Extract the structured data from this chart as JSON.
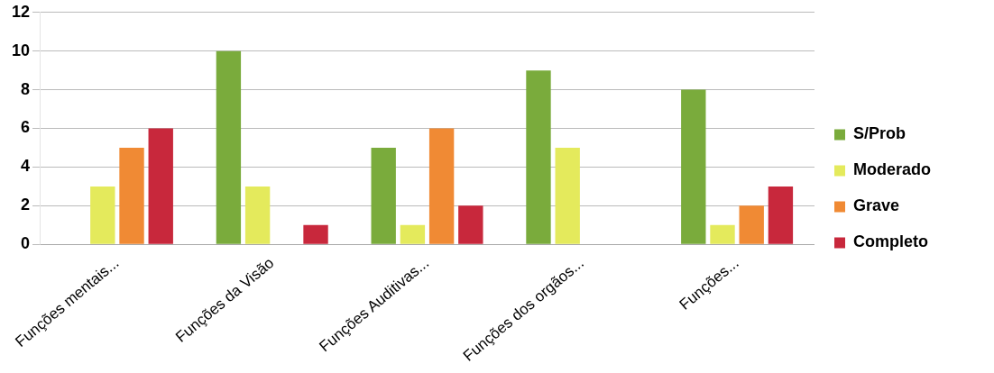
{
  "chart_data": {
    "type": "bar",
    "categories": [
      "Funções mentais...",
      "Funções da Visão",
      "Funções Auditivas...",
      "Funções dos orgãos...",
      "Funções..."
    ],
    "series": [
      {
        "name": "S/Prob",
        "color": "#7aab3c",
        "values": [
          0,
          10,
          5,
          9,
          8
        ]
      },
      {
        "name": "Moderado",
        "color": "#e4ea5c",
        "values": [
          3,
          3,
          1,
          5,
          1
        ]
      },
      {
        "name": "Grave",
        "color": "#f08a34",
        "values": [
          5,
          0,
          6,
          0,
          2
        ]
      },
      {
        "name": "Completo",
        "color": "#c8283c",
        "values": [
          6,
          1,
          2,
          0,
          3
        ]
      }
    ],
    "ylim": [
      0,
      12
    ],
    "yticks": [
      0,
      2,
      4,
      6,
      8,
      10,
      12
    ],
    "grid": "y",
    "legend": "right"
  }
}
